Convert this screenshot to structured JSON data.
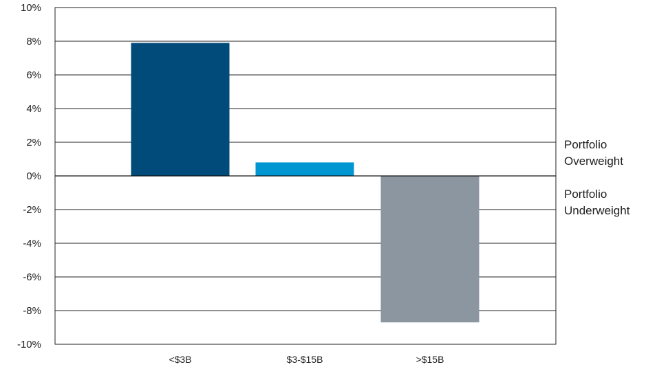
{
  "chart_data": {
    "type": "bar",
    "categories": [
      "<$3B",
      "$3-$15B",
      ">$15B"
    ],
    "values": [
      7.9,
      0.8,
      -8.7
    ],
    "unit": "%",
    "ylim": [
      -10,
      10
    ],
    "yticks": [
      10,
      8,
      6,
      4,
      2,
      0,
      -2,
      -4,
      -6,
      -8,
      -10
    ],
    "ytick_labels": [
      "10%",
      "8%",
      "6%",
      "4%",
      "2%",
      "0%",
      "-2%",
      "-4%",
      "-6%",
      "-8%",
      "-10%"
    ],
    "colors": [
      "#004b7a",
      "#0096d1",
      "#8c96a0"
    ],
    "grid": true,
    "annotations": {
      "above_zero": [
        "Portfolio",
        "Overweight"
      ],
      "below_zero": [
        "Portfolio",
        "Underweight"
      ]
    }
  }
}
